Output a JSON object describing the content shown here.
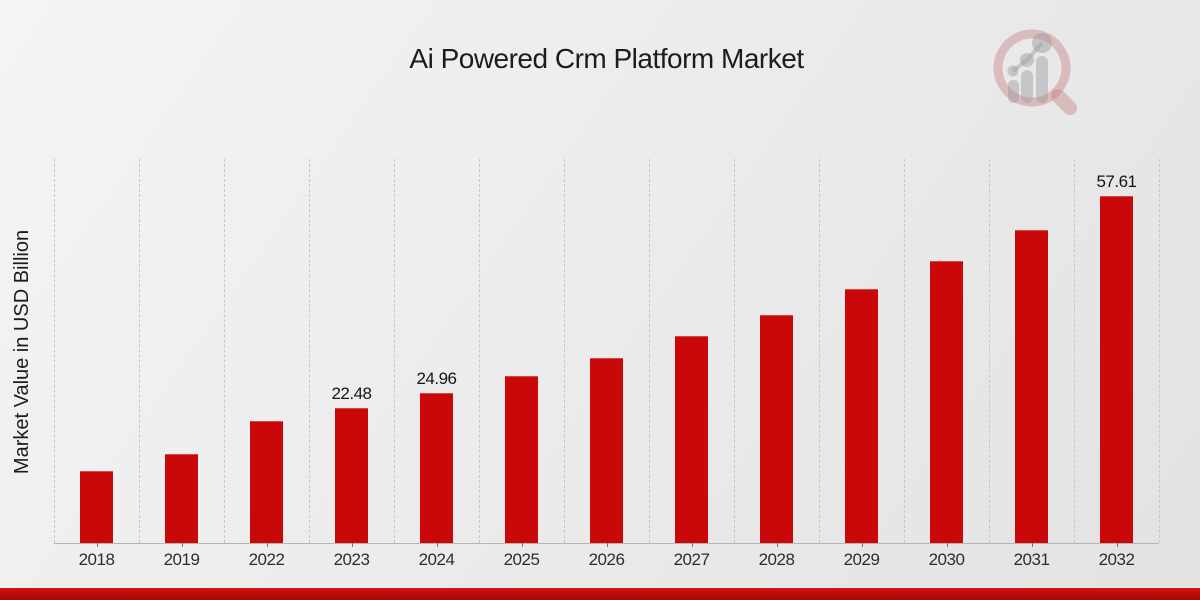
{
  "chart_data": {
    "type": "bar",
    "title": "Ai Powered Crm Platform Market",
    "xlabel": "",
    "ylabel": "Market Value in USD Billion",
    "categories": [
      "2018",
      "2019",
      "2022",
      "2023",
      "2024",
      "2025",
      "2026",
      "2027",
      "2028",
      "2029",
      "2030",
      "2031",
      "2032"
    ],
    "values": [
      11.9,
      14.8,
      20.3,
      22.48,
      24.96,
      27.7,
      30.8,
      34.3,
      37.9,
      42.2,
      46.9,
      52.0,
      57.61
    ],
    "point_labels": {
      "2023": "22.48",
      "2024": "24.96",
      "2032": "57.61"
    },
    "ylim": [
      0,
      63.75
    ],
    "grid": "vertical-dashed-category-boundaries",
    "legend": "none",
    "bar_color": "#cb0809"
  },
  "branding": {
    "logo_icon": "magnifier-growth-bars-watermark",
    "banner_color_top": "#dd1210",
    "banner_color_bottom": "#a30808"
  },
  "colors": {
    "bar": "#cb0809",
    "grid": "#c7c7c7",
    "axis": "#b5b5b5",
    "title_text": "#1c1c1c",
    "tick_text": "#2d2d2d"
  }
}
